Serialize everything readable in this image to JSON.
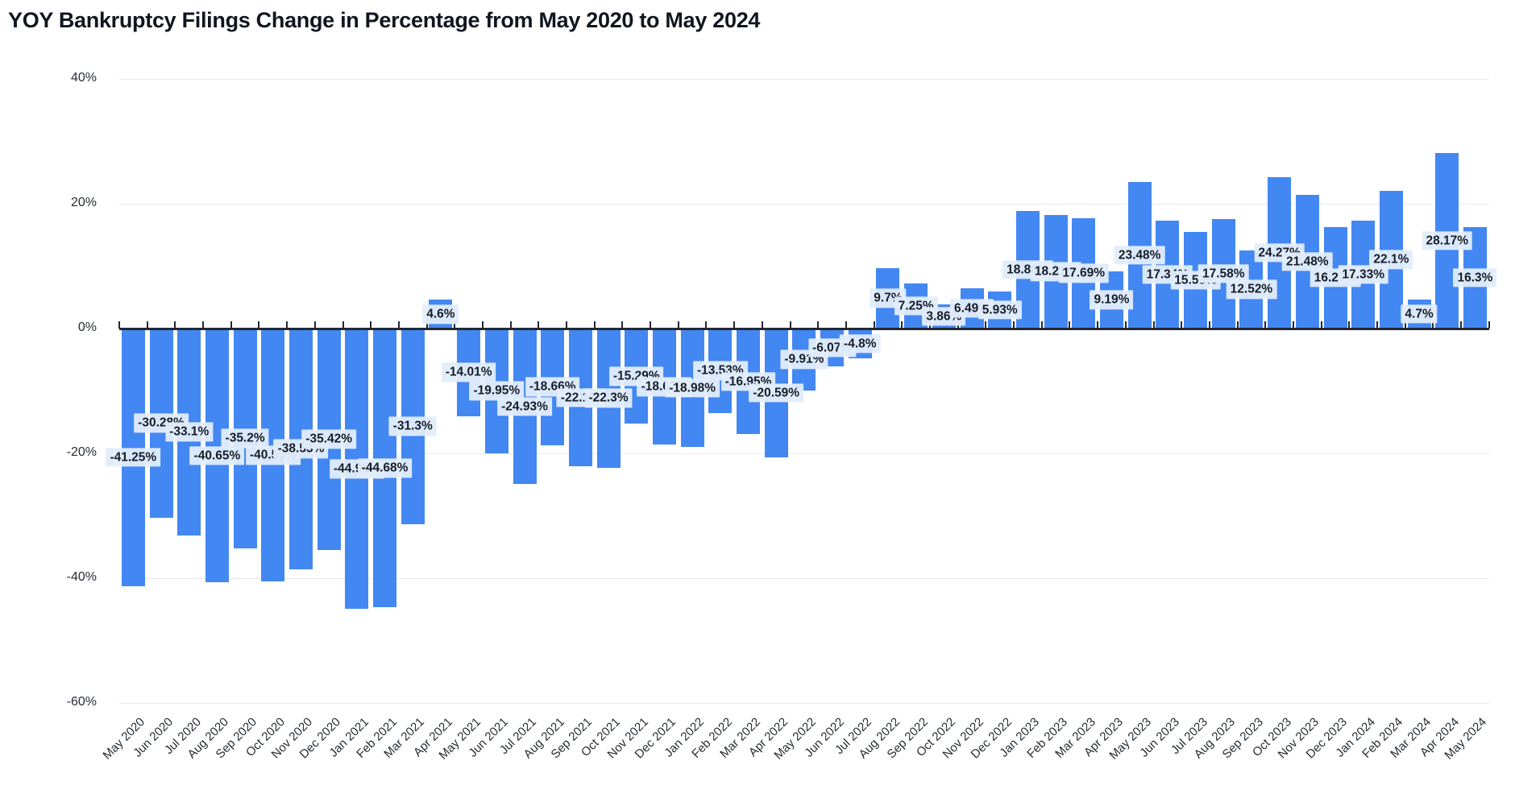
{
  "chart_data": {
    "type": "bar",
    "title": "YOY Bankruptcy Filings Change in Percentage from May 2020 to May 2024",
    "xlabel": "",
    "ylabel": "",
    "ylim": [
      -60,
      40
    ],
    "grid": true,
    "legend": false,
    "bar_color": "#4387F2",
    "label_chip_bg": "#E3EDFB",
    "label_text_color": "#161E28",
    "axis_line_color": "#232932",
    "gridline_color": "#E8EAEC",
    "ytick_labels": [
      "40%",
      "20%",
      "0%",
      "-20%",
      "-40%",
      "-60%"
    ],
    "ytick_values": [
      40,
      20,
      0,
      -20,
      -40,
      -60
    ],
    "categories": [
      "May 2020",
      "Jun 2020",
      "Jul 2020",
      "Aug 2020",
      "Sep 2020",
      "Oct 2020",
      "Nov 2020",
      "Dec 2020",
      "Jan 2021",
      "Feb 2021",
      "Mar 2021",
      "Apr 2021",
      "May 2021",
      "Jun 2021",
      "Jul 2021",
      "Aug 2021",
      "Sep 2021",
      "Oct 2021",
      "Nov 2021",
      "Dec 2021",
      "Jan 2022",
      "Feb 2022",
      "Mar 2022",
      "Apr 2022",
      "May 2022",
      "Jun 2022",
      "Jul 2022",
      "Aug 2022",
      "Sep 2022",
      "Oct 2022",
      "Nov 2022",
      "Dec 2022",
      "Jan 2023",
      "Feb 2023",
      "Mar 2023",
      "Apr 2023",
      "May 2023",
      "Jun 2023",
      "Jul 2023",
      "Aug 2023",
      "Sep 2023",
      "Oct 2023",
      "Nov 2023",
      "Dec 2023",
      "Jan 2024",
      "Feb 2024",
      "Mar 2024",
      "Apr 2024",
      "May 2024"
    ],
    "values": [
      -41.25,
      -30.28,
      -33.1,
      -40.65,
      -35.2,
      -40.55,
      -38.53,
      -35.42,
      -44.95,
      -44.68,
      -31.3,
      4.6,
      -14.01,
      -19.95,
      -24.93,
      -18.66,
      -22.1,
      -22.3,
      -15.29,
      -18.63,
      -18.98,
      -13.53,
      -16.95,
      -20.59,
      -9.91,
      -6.07,
      -4.8,
      9.7,
      7.25,
      3.86,
      6.49,
      5.93,
      18.86,
      18.21,
      17.69,
      9.19,
      23.48,
      17.34,
      15.53,
      17.58,
      12.52,
      24.27,
      21.48,
      16.27,
      17.33,
      22.1,
      4.7,
      28.17,
      16.3
    ],
    "data_labels": [
      "-41.25%",
      "-30.28%",
      "-33.1%",
      "-40.65%",
      "-35.2%",
      "-40.55%",
      "-38.53%",
      "-35.42%",
      "-44.95%",
      "-44.68%",
      "-31.3%",
      "4.6%",
      "-14.01%",
      "-19.95%",
      "-24.93%",
      "-18.66%",
      "-22.1%",
      "-22.3%",
      "-15.29%",
      "-18.63%",
      "-18.98%",
      "-13.53%",
      "-16.95%",
      "-20.59%",
      "-9.91%",
      "-6.07%",
      "-4.8%",
      "9.7%",
      "7.25%",
      "3.86%",
      "6.49%",
      "5.93%",
      "18.86%",
      "18.21%",
      "17.69%",
      "9.19%",
      "23.48%",
      "17.34%",
      "15.53%",
      "17.58%",
      "12.52%",
      "24.27%",
      "21.48%",
      "16.27%",
      "17.33%",
      "22.1%",
      "4.7%",
      "28.17%",
      "16.3%"
    ]
  }
}
